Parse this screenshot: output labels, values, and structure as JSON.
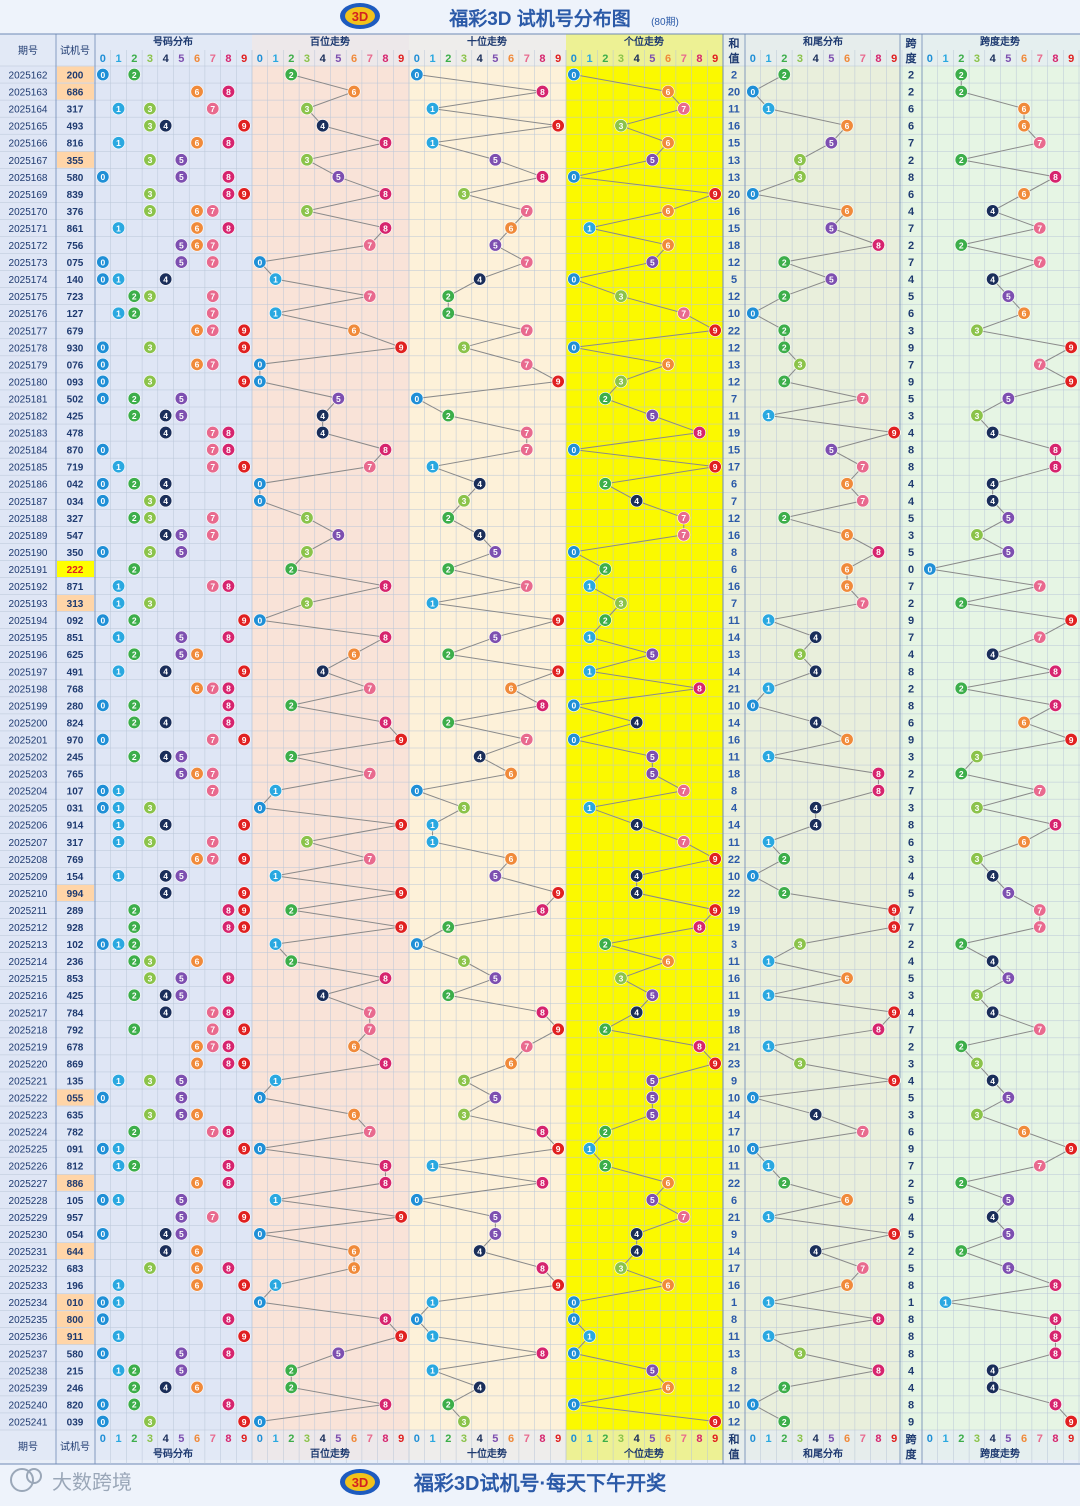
{
  "header": {
    "title": "福彩3D 试机号分布图",
    "period_count": "(80期)"
  },
  "footer": {
    "slogan": "福彩3D试机号·每天下午开奖",
    "brand": "大数跨境"
  },
  "columns": {
    "issue": "期号",
    "number": "试机号",
    "dist": "号码分布",
    "hundreds": "百位走势",
    "tens": "十位走势",
    "units": "个位走势",
    "sum_top": "和",
    "sum_bottom": "值",
    "tail": "和尾分布",
    "span_top": "跨",
    "span_bottom": "度",
    "span_trend": "跨度走势"
  },
  "digits": [
    "0",
    "1",
    "2",
    "3",
    "4",
    "5",
    "6",
    "7",
    "8",
    "9"
  ],
  "colors": {
    "title": "#2b5aa8",
    "header_bg": "#dfe8f7",
    "dist_bg": "#dfe6f5",
    "hundreds_bg": "#f9e3d8",
    "tens_bg": "#fdf1d9",
    "units_bg": "#fbf900",
    "tail_bg": "#e9efdc",
    "span_bg": "#e6f5e4",
    "line": "#8a8a8a",
    "ball": [
      "#1f8fd6",
      "#2aa8e0",
      "#3cae4a",
      "#8bc34a",
      "#1a2e5a",
      "#7d4fb0",
      "#f08a3a",
      "#e86a8e",
      "#d6246e",
      "#e02020"
    ],
    "highlight_same": "#ffd5a8",
    "highlight_triple": "#ffff00"
  },
  "chart_data": {
    "type": "table",
    "title": "福彩3D 试机号分布图",
    "rows": [
      {
        "issue": "2025162",
        "number": "200",
        "sum": 2,
        "span": 2
      },
      {
        "issue": "2025163",
        "number": "686",
        "sum": 20,
        "span": 2
      },
      {
        "issue": "2025164",
        "number": "317",
        "sum": 11,
        "span": 6
      },
      {
        "issue": "2025165",
        "number": "493",
        "sum": 16,
        "span": 6
      },
      {
        "issue": "2025166",
        "number": "816",
        "sum": 15,
        "span": 7
      },
      {
        "issue": "2025167",
        "number": "355",
        "sum": 13,
        "span": 2
      },
      {
        "issue": "2025168",
        "number": "580",
        "sum": 13,
        "span": 8
      },
      {
        "issue": "2025169",
        "number": "839",
        "sum": 20,
        "span": 6
      },
      {
        "issue": "2025170",
        "number": "376",
        "sum": 16,
        "span": 4
      },
      {
        "issue": "2025171",
        "number": "861",
        "sum": 15,
        "span": 7
      },
      {
        "issue": "2025172",
        "number": "756",
        "sum": 18,
        "span": 2
      },
      {
        "issue": "2025173",
        "number": "075",
        "sum": 12,
        "span": 7
      },
      {
        "issue": "2025174",
        "number": "140",
        "sum": 5,
        "span": 4
      },
      {
        "issue": "2025175",
        "number": "723",
        "sum": 12,
        "span": 5
      },
      {
        "issue": "2025176",
        "number": "127",
        "sum": 10,
        "span": 6
      },
      {
        "issue": "2025177",
        "number": "679",
        "sum": 22,
        "span": 3
      },
      {
        "issue": "2025178",
        "number": "930",
        "sum": 12,
        "span": 9
      },
      {
        "issue": "2025179",
        "number": "076",
        "sum": 13,
        "span": 7
      },
      {
        "issue": "2025180",
        "number": "093",
        "sum": 12,
        "span": 9
      },
      {
        "issue": "2025181",
        "number": "502",
        "sum": 7,
        "span": 5
      },
      {
        "issue": "2025182",
        "number": "425",
        "sum": 11,
        "span": 3
      },
      {
        "issue": "2025183",
        "number": "478",
        "sum": 19,
        "span": 4
      },
      {
        "issue": "2025184",
        "number": "870",
        "sum": 15,
        "span": 8
      },
      {
        "issue": "2025185",
        "number": "719",
        "sum": 17,
        "span": 8
      },
      {
        "issue": "2025186",
        "number": "042",
        "sum": 6,
        "span": 4
      },
      {
        "issue": "2025187",
        "number": "034",
        "sum": 7,
        "span": 4
      },
      {
        "issue": "2025188",
        "number": "327",
        "sum": 12,
        "span": 5
      },
      {
        "issue": "2025189",
        "number": "547",
        "sum": 16,
        "span": 3
      },
      {
        "issue": "2025190",
        "number": "350",
        "sum": 8,
        "span": 5
      },
      {
        "issue": "2025191",
        "number": "222",
        "sum": 6,
        "span": 0
      },
      {
        "issue": "2025192",
        "number": "871",
        "sum": 16,
        "span": 7
      },
      {
        "issue": "2025193",
        "number": "313",
        "sum": 7,
        "span": 2
      },
      {
        "issue": "2025194",
        "number": "092",
        "sum": 11,
        "span": 9
      },
      {
        "issue": "2025195",
        "number": "851",
        "sum": 14,
        "span": 7
      },
      {
        "issue": "2025196",
        "number": "625",
        "sum": 13,
        "span": 4
      },
      {
        "issue": "2025197",
        "number": "491",
        "sum": 14,
        "span": 8
      },
      {
        "issue": "2025198",
        "number": "768",
        "sum": 21,
        "span": 2
      },
      {
        "issue": "2025199",
        "number": "280",
        "sum": 10,
        "span": 8
      },
      {
        "issue": "2025200",
        "number": "824",
        "sum": 14,
        "span": 6
      },
      {
        "issue": "2025201",
        "number": "970",
        "sum": 16,
        "span": 9
      },
      {
        "issue": "2025202",
        "number": "245",
        "sum": 11,
        "span": 3
      },
      {
        "issue": "2025203",
        "number": "765",
        "sum": 18,
        "span": 2
      },
      {
        "issue": "2025204",
        "number": "107",
        "sum": 8,
        "span": 7
      },
      {
        "issue": "2025205",
        "number": "031",
        "sum": 4,
        "span": 3
      },
      {
        "issue": "2025206",
        "number": "914",
        "sum": 14,
        "span": 8
      },
      {
        "issue": "2025207",
        "number": "317",
        "sum": 11,
        "span": 6
      },
      {
        "issue": "2025208",
        "number": "769",
        "sum": 22,
        "span": 3
      },
      {
        "issue": "2025209",
        "number": "154",
        "sum": 10,
        "span": 4
      },
      {
        "issue": "2025210",
        "number": "994",
        "sum": 22,
        "span": 5
      },
      {
        "issue": "2025211",
        "number": "289",
        "sum": 19,
        "span": 7
      },
      {
        "issue": "2025212",
        "number": "928",
        "sum": 19,
        "span": 7
      },
      {
        "issue": "2025213",
        "number": "102",
        "sum": 3,
        "span": 2
      },
      {
        "issue": "2025214",
        "number": "236",
        "sum": 11,
        "span": 4
      },
      {
        "issue": "2025215",
        "number": "853",
        "sum": 16,
        "span": 5
      },
      {
        "issue": "2025216",
        "number": "425",
        "sum": 11,
        "span": 3
      },
      {
        "issue": "2025217",
        "number": "784",
        "sum": 19,
        "span": 4
      },
      {
        "issue": "2025218",
        "number": "792",
        "sum": 18,
        "span": 7
      },
      {
        "issue": "2025219",
        "number": "678",
        "sum": 21,
        "span": 2
      },
      {
        "issue": "2025220",
        "number": "869",
        "sum": 23,
        "span": 3
      },
      {
        "issue": "2025221",
        "number": "135",
        "sum": 9,
        "span": 4
      },
      {
        "issue": "2025222",
        "number": "055",
        "sum": 10,
        "span": 5
      },
      {
        "issue": "2025223",
        "number": "635",
        "sum": 14,
        "span": 3
      },
      {
        "issue": "2025224",
        "number": "782",
        "sum": 17,
        "span": 6
      },
      {
        "issue": "2025225",
        "number": "091",
        "sum": 10,
        "span": 9
      },
      {
        "issue": "2025226",
        "number": "812",
        "sum": 11,
        "span": 7
      },
      {
        "issue": "2025227",
        "number": "886",
        "sum": 22,
        "span": 2
      },
      {
        "issue": "2025228",
        "number": "105",
        "sum": 6,
        "span": 5
      },
      {
        "issue": "2025229",
        "number": "957",
        "sum": 21,
        "span": 4
      },
      {
        "issue": "2025230",
        "number": "054",
        "sum": 9,
        "span": 5
      },
      {
        "issue": "2025231",
        "number": "644",
        "sum": 14,
        "span": 2
      },
      {
        "issue": "2025232",
        "number": "683",
        "sum": 17,
        "span": 5
      },
      {
        "issue": "2025233",
        "number": "196",
        "sum": 16,
        "span": 8
      },
      {
        "issue": "2025234",
        "number": "010",
        "sum": 1,
        "span": 1
      },
      {
        "issue": "2025235",
        "number": "800",
        "sum": 8,
        "span": 8
      },
      {
        "issue": "2025236",
        "number": "911",
        "sum": 11,
        "span": 8
      },
      {
        "issue": "2025237",
        "number": "580",
        "sum": 13,
        "span": 8
      },
      {
        "issue": "2025238",
        "number": "215",
        "sum": 8,
        "span": 4
      },
      {
        "issue": "2025239",
        "number": "246",
        "sum": 12,
        "span": 4
      },
      {
        "issue": "2025240",
        "number": "820",
        "sum": 10,
        "span": 8
      },
      {
        "issue": "2025241",
        "number": "039",
        "sum": 12,
        "span": 9
      }
    ]
  }
}
